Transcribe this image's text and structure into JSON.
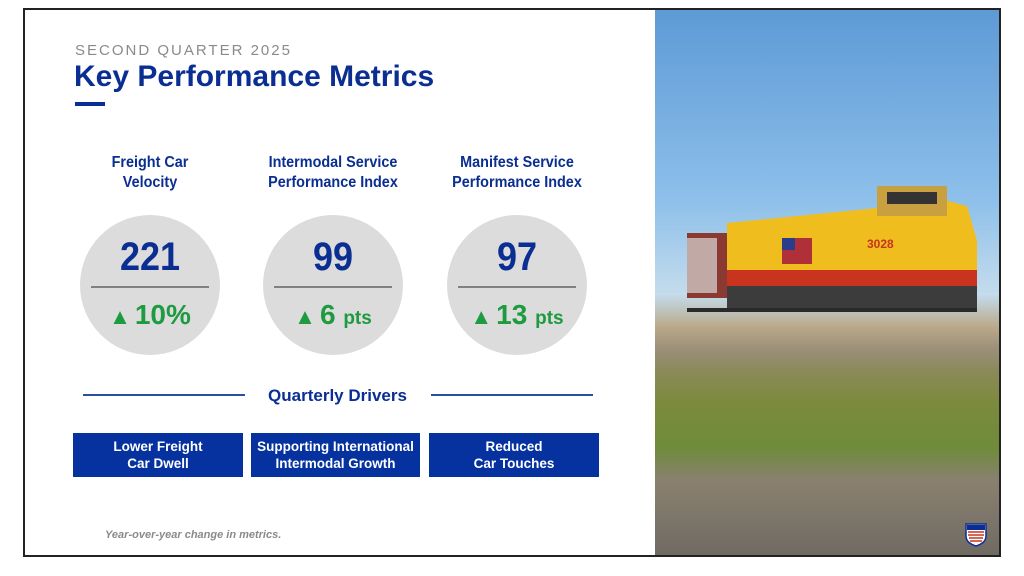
{
  "header": {
    "eyebrow": "SECOND QUARTER 2025",
    "title": "Key Performance Metrics"
  },
  "metrics": [
    {
      "title_line1": "Freight Car",
      "title_line2": "Velocity",
      "value": "221",
      "change": "10%",
      "unit": ""
    },
    {
      "title_line1": "Intermodal Service",
      "title_line2": "Performance Index",
      "value": "99",
      "change": "6",
      "unit": "pts"
    },
    {
      "title_line1": "Manifest Service",
      "title_line2": "Performance Index",
      "value": "97",
      "change": "13",
      "unit": "pts"
    }
  ],
  "drivers": {
    "title": "Quarterly Drivers",
    "items": [
      {
        "line1": "Lower Freight",
        "line2": "Car Dwell"
      },
      {
        "line1": "Supporting International",
        "line2": "Intermodal Growth"
      },
      {
        "line1": "Reduced",
        "line2": "Car Touches"
      }
    ]
  },
  "footnote": "Year-over-year change in metrics.",
  "photo": {
    "locomotive_number": "3028"
  },
  "colors": {
    "brand_blue": "#0a2e92",
    "box_blue": "#0632a0",
    "up_green": "#1e9a40",
    "circle_gray": "#dcdcdc"
  }
}
